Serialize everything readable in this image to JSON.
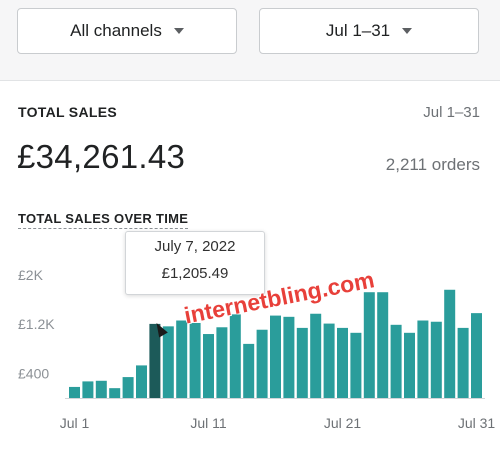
{
  "filters": {
    "channel_select": "All channels",
    "date_select": "Jul 1–31"
  },
  "summary": {
    "label": "TOTAL SALES",
    "range": "Jul 1–31",
    "amount": "£34,261.43",
    "orders": "2,211 orders"
  },
  "chart_title": "TOTAL SALES OVER TIME",
  "tooltip": {
    "date": "July 7, 2022",
    "value": "£1,205.49"
  },
  "watermark": "internetbling.com",
  "chart_data": {
    "type": "bar",
    "title": "TOTAL SALES OVER TIME",
    "xlabel": "",
    "ylabel": "",
    "y_tick_labels": [
      "£400",
      "£1.2K",
      "£2K"
    ],
    "y_ticks": [
      400,
      1200,
      2000
    ],
    "x_tick_labels": [
      "Jul 1",
      "Jul 11",
      "Jul 21",
      "Jul 31"
    ],
    "x_tick_days": [
      1,
      11,
      21,
      31
    ],
    "ylim": [
      0,
      2400
    ],
    "grid": false,
    "highlighted_day": 7,
    "bar_color": "#2a9d9b",
    "highlight_color": "#1c5a59",
    "days": [
      1,
      2,
      3,
      4,
      5,
      6,
      7,
      8,
      9,
      10,
      11,
      12,
      13,
      14,
      15,
      16,
      17,
      18,
      19,
      20,
      21,
      22,
      23,
      24,
      25,
      26,
      27,
      28,
      29,
      30,
      31
    ],
    "values": [
      180,
      270,
      280,
      160,
      340,
      530,
      1205,
      1165,
      1260,
      1220,
      1040,
      1150,
      1360,
      880,
      1110,
      1340,
      1320,
      1140,
      1370,
      1210,
      1140,
      1060,
      1720,
      1720,
      1190,
      1060,
      1260,
      1240,
      1760,
      1140,
      1380
    ]
  },
  "colors": {
    "bar": "#2a9d9b",
    "highlight_bar": "#1c5a59",
    "watermark": "#e8403a"
  }
}
